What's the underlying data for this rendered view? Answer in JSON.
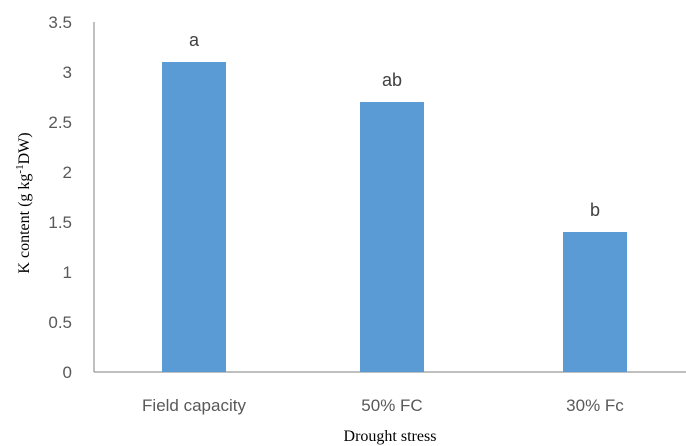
{
  "chart_data": {
    "type": "bar",
    "categories": [
      "Field capacity",
      "50% FC",
      "30% Fc"
    ],
    "values": [
      3.1,
      2.7,
      1.4
    ],
    "significance_letters": [
      "a",
      "ab",
      "b"
    ],
    "xlabel": "Drought stress",
    "ylabel": "K content (g kg",
    "ylabel_sup": "-1",
    "ylabel_tail": "DW)",
    "ylim": [
      0,
      3.5
    ],
    "yticks": [
      "0",
      "0.5",
      "1",
      "1.5",
      "2",
      "2.5",
      "3",
      "3.5"
    ],
    "bar_color": "#5b9bd5",
    "grid": false,
    "legend": "none"
  }
}
